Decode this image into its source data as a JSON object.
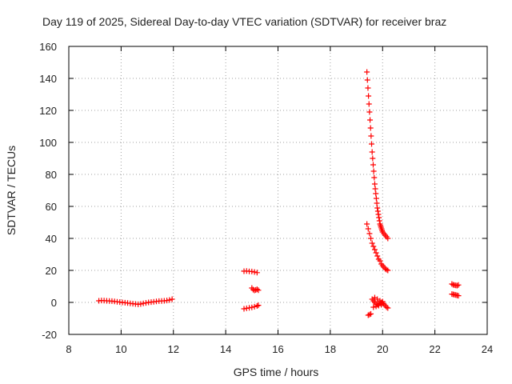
{
  "chart_data": {
    "type": "scatter",
    "title": "Day 119 of 2025, Sidereal Day-to-day VTEC variation (SDTVAR) for receiver braz",
    "xlabel": "GPS time / hours",
    "ylabel": "SDTVAR / TECUs",
    "xlim": [
      8,
      24
    ],
    "ylim": [
      -20,
      160
    ],
    "xticks": [
      8,
      10,
      12,
      14,
      16,
      18,
      20,
      22,
      24
    ],
    "yticks": [
      -20,
      0,
      20,
      40,
      60,
      80,
      100,
      120,
      140,
      160
    ],
    "grid": true,
    "marker": "+",
    "color": "#ff0000",
    "series": [
      {
        "name": "SDTVAR",
        "points": [
          [
            9.15,
            1.0
          ],
          [
            9.25,
            1.2
          ],
          [
            9.35,
            1.1
          ],
          [
            9.45,
            1.0
          ],
          [
            9.55,
            0.9
          ],
          [
            9.65,
            0.8
          ],
          [
            9.75,
            0.6
          ],
          [
            9.85,
            0.4
          ],
          [
            9.95,
            0.2
          ],
          [
            10.05,
            0.0
          ],
          [
            10.15,
            -0.2
          ],
          [
            10.25,
            -0.4
          ],
          [
            10.35,
            -0.6
          ],
          [
            10.45,
            -0.8
          ],
          [
            10.55,
            -1.0
          ],
          [
            10.65,
            -1.2
          ],
          [
            10.75,
            -1.0
          ],
          [
            10.85,
            -0.6
          ],
          [
            10.95,
            -0.3
          ],
          [
            11.05,
            0.0
          ],
          [
            11.15,
            0.2
          ],
          [
            11.25,
            0.4
          ],
          [
            11.35,
            0.6
          ],
          [
            11.45,
            0.8
          ],
          [
            11.55,
            0.9
          ],
          [
            11.65,
            1.0
          ],
          [
            11.75,
            1.2
          ],
          [
            11.85,
            1.5
          ],
          [
            11.95,
            2.0
          ],
          [
            14.7,
            19.5
          ],
          [
            14.8,
            19.6
          ],
          [
            14.9,
            19.4
          ],
          [
            15.0,
            19.3
          ],
          [
            15.1,
            19.0
          ],
          [
            15.2,
            18.6
          ],
          [
            15.0,
            9.0
          ],
          [
            15.05,
            8.0
          ],
          [
            15.1,
            7.5
          ],
          [
            15.15,
            7.8
          ],
          [
            15.2,
            8.2
          ],
          [
            15.25,
            7.6
          ],
          [
            14.7,
            -4.0
          ],
          [
            14.8,
            -3.7
          ],
          [
            14.9,
            -3.4
          ],
          [
            15.0,
            -3.1
          ],
          [
            15.1,
            -2.7
          ],
          [
            15.2,
            -2.2
          ],
          [
            15.25,
            -1.8
          ],
          [
            19.4,
            144
          ],
          [
            19.42,
            139
          ],
          [
            19.44,
            134
          ],
          [
            19.46,
            129
          ],
          [
            19.48,
            124
          ],
          [
            19.5,
            119
          ],
          [
            19.52,
            114
          ],
          [
            19.54,
            109
          ],
          [
            19.56,
            104
          ],
          [
            19.58,
            99
          ],
          [
            19.6,
            94
          ],
          [
            19.62,
            90
          ],
          [
            19.64,
            86
          ],
          [
            19.66,
            82
          ],
          [
            19.68,
            78
          ],
          [
            19.7,
            74
          ],
          [
            19.72,
            71
          ],
          [
            19.74,
            68
          ],
          [
            19.76,
            65
          ],
          [
            19.78,
            62
          ],
          [
            19.8,
            59
          ],
          [
            19.82,
            57
          ],
          [
            19.84,
            55
          ],
          [
            19.86,
            53
          ],
          [
            19.88,
            51
          ],
          [
            19.9,
            49
          ],
          [
            19.92,
            48
          ],
          [
            19.94,
            47
          ],
          [
            19.96,
            46
          ],
          [
            19.98,
            45
          ],
          [
            20.0,
            44
          ],
          [
            20.05,
            43
          ],
          [
            20.1,
            42
          ],
          [
            20.15,
            41
          ],
          [
            20.2,
            40
          ],
          [
            19.4,
            49
          ],
          [
            19.45,
            46
          ],
          [
            19.5,
            43
          ],
          [
            19.55,
            40
          ],
          [
            19.6,
            37
          ],
          [
            19.65,
            35
          ],
          [
            19.7,
            33
          ],
          [
            19.75,
            31
          ],
          [
            19.8,
            29
          ],
          [
            19.85,
            27
          ],
          [
            19.9,
            26
          ],
          [
            19.95,
            24
          ],
          [
            20.0,
            23
          ],
          [
            20.05,
            22
          ],
          [
            20.1,
            21
          ],
          [
            20.15,
            20.5
          ],
          [
            20.2,
            20
          ],
          [
            19.45,
            -8.0
          ],
          [
            19.5,
            -7.6
          ],
          [
            19.55,
            -7.2
          ],
          [
            19.6,
            2.0
          ],
          [
            19.65,
            1.0
          ],
          [
            19.7,
            0.0
          ],
          [
            19.75,
            -1.0
          ],
          [
            19.8,
            -1.5
          ],
          [
            19.85,
            -1.0
          ],
          [
            19.9,
            -0.5
          ],
          [
            19.95,
            0.0
          ],
          [
            20.0,
            -0.5
          ],
          [
            20.05,
            -1.0
          ],
          [
            20.1,
            -2.0
          ],
          [
            20.15,
            -3.0
          ],
          [
            20.2,
            -3.5
          ],
          [
            19.65,
            -3.0
          ],
          [
            19.75,
            -2.5
          ],
          [
            19.85,
            -2.0
          ],
          [
            19.95,
            -1.5
          ],
          [
            19.7,
            3.0
          ],
          [
            19.8,
            2.0
          ],
          [
            19.9,
            1.0
          ],
          [
            20.0,
            0.5
          ],
          [
            22.65,
            11.5
          ],
          [
            22.7,
            11.0
          ],
          [
            22.75,
            10.8
          ],
          [
            22.8,
            10.6
          ],
          [
            22.85,
            10.5
          ],
          [
            22.9,
            10.9
          ],
          [
            22.65,
            5.2
          ],
          [
            22.7,
            5.0
          ],
          [
            22.75,
            4.8
          ],
          [
            22.8,
            4.6
          ],
          [
            22.85,
            4.4
          ],
          [
            22.9,
            4.2
          ]
        ]
      }
    ]
  }
}
